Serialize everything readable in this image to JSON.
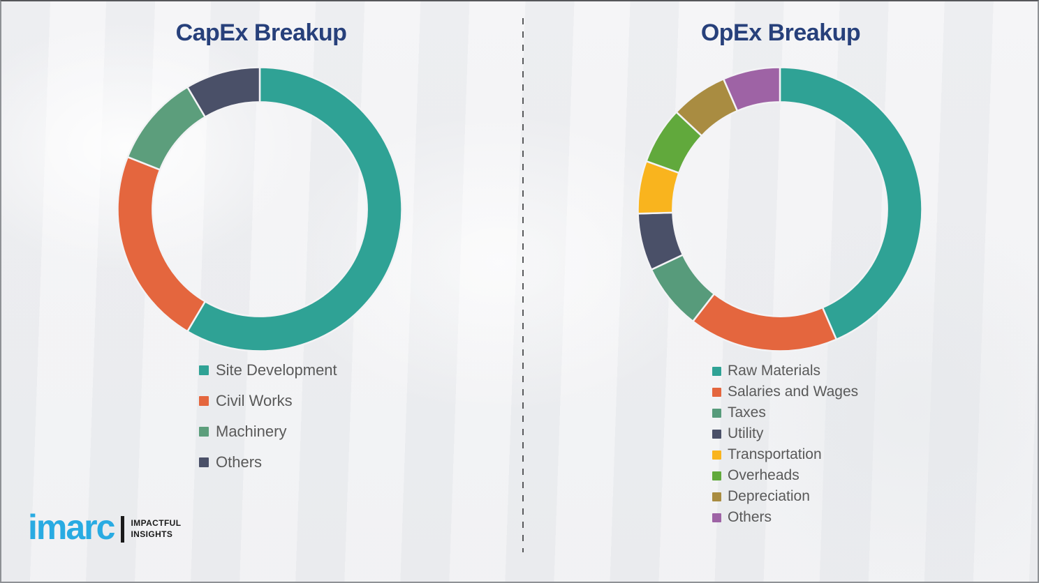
{
  "page": {
    "background_color": "#F1F2F3",
    "border_color": "#8E9195",
    "divider": {
      "orientation": "vertical",
      "style": "dashed",
      "color": "#58595B"
    }
  },
  "chart_data": [
    {
      "type": "pie",
      "subtype": "donut",
      "title": "CapEx Breakup",
      "title_color": "#27407B",
      "start_angle_deg": 0,
      "direction": "clockwise",
      "inner_radius_ratio": 0.755,
      "legend_position": "below-left",
      "unit": "percent-of-total",
      "categories": [
        "Site Development",
        "Civil Works",
        "Machinery",
        "Others"
      ],
      "values": [
        58.5,
        22.5,
        10.5,
        8.5
      ],
      "colors": [
        "#2FA295",
        "#E4663E",
        "#5C9E7C",
        "#4A5068"
      ]
    },
    {
      "type": "pie",
      "subtype": "donut",
      "title": "OpEx Breakup",
      "title_color": "#27407B",
      "start_angle_deg": 0,
      "direction": "clockwise",
      "inner_radius_ratio": 0.755,
      "legend_position": "below-left",
      "unit": "percent-of-total",
      "categories": [
        "Raw Materials",
        "Salaries and Wages",
        "Taxes",
        "Utility",
        "Transportation",
        "Overheads",
        "Depreciation",
        "Others"
      ],
      "values": [
        43.5,
        17,
        7.5,
        6.5,
        6,
        6.5,
        6.5,
        6.5
      ],
      "colors": [
        "#2FA295",
        "#E4663E",
        "#579B7B",
        "#4A5068",
        "#F9B41E",
        "#61A93C",
        "#A98C41",
        "#9E63A5"
      ]
    }
  ],
  "legend_text_color": "#595959",
  "logo": {
    "brand": "imarc",
    "brand_color": "#29ABE2",
    "separator_color": "#1A1A1A",
    "tagline_line1": "IMPACTFUL",
    "tagline_line2": "INSIGHTS",
    "tagline_color": "#1A1A1A"
  }
}
